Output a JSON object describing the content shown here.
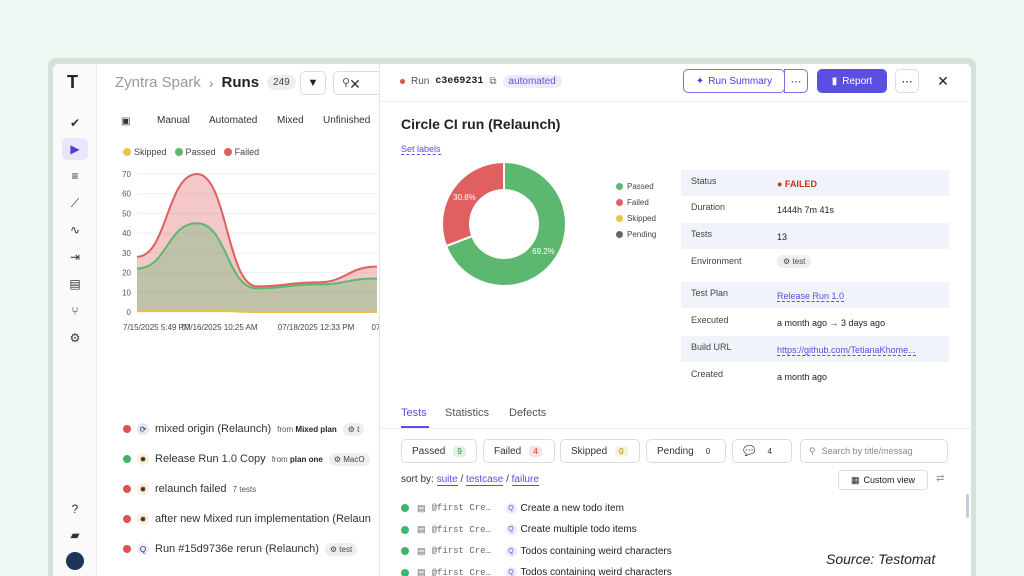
{
  "brand": {
    "logo_text": "T"
  },
  "rail": {
    "icons": [
      "check-icon",
      "play-icon",
      "list-icon",
      "steps-icon",
      "pulse-icon",
      "import-icon",
      "report-icon",
      "branch-icon",
      "gear-icon",
      "help-icon",
      "folder-icon",
      "avatar"
    ]
  },
  "breadcrumb": {
    "project": "Zyntra Spark",
    "separator": "›",
    "section": "Runs",
    "count": "249"
  },
  "filters": {
    "tabs": [
      "Manual",
      "Automated",
      "Mixed",
      "Unfinished"
    ]
  },
  "chart_data": {
    "type": "area",
    "legend": [
      "Skipped",
      "Passed",
      "Failed"
    ],
    "colors": {
      "Skipped": "#e8c547",
      "Passed": "#5cb86e",
      "Failed": "#e06060"
    },
    "y_ticks": [
      "70",
      "60",
      "50",
      "40",
      "30",
      "20",
      "10",
      "0"
    ],
    "x_ticks": [
      "7/15/2025 5:49 PM",
      "07/16/2025 10:25 AM",
      "07/18/2025 12:33 PM",
      "07/"
    ],
    "ylim": [
      0,
      70
    ],
    "x": [
      0,
      1,
      2,
      3,
      4
    ],
    "series": [
      {
        "name": "Passed",
        "values": [
          22,
          45,
          12,
          14,
          17
        ]
      },
      {
        "name": "Failed",
        "values": [
          28,
          70,
          13,
          15,
          23
        ]
      },
      {
        "name": "Skipped",
        "values": [
          1,
          1,
          0,
          0,
          0
        ]
      }
    ]
  },
  "runs": [
    {
      "status": "fail",
      "icon": "⟳",
      "icon_bg": "#dfe8fb",
      "title": "mixed origin (Relaunch)",
      "sub_prefix": "from",
      "sub_bold": "Mixed plan",
      "tag": "⚙ t"
    },
    {
      "status": "pass",
      "icon": "✸",
      "icon_bg": "#fdf0d5",
      "title": "Release Run 1.0 Copy",
      "sub_prefix": "from",
      "sub_bold": "plan one",
      "tag": "⚙ MacO"
    },
    {
      "status": "fail",
      "icon": "✸",
      "icon_bg": "#fdf0d5",
      "title": "relaunch failed",
      "sub_prefix": "7 tests",
      "sub_bold": "",
      "tag": ""
    },
    {
      "status": "fail",
      "icon": "✸",
      "icon_bg": "#fdf0d5",
      "title": "after new Mixed run implementation (Relaun",
      "sub_prefix": "",
      "sub_bold": "",
      "tag": ""
    },
    {
      "status": "fail",
      "icon": "Q",
      "icon_bg": "#efeafd",
      "title": "Run #15d9736e rerun (Relaunch)",
      "sub_prefix": "",
      "sub_bold": "",
      "tag": "⚙ test"
    }
  ],
  "panel": {
    "run_prefix": "Run",
    "run_id": "c3e69231",
    "origin_tag": "automated",
    "summary_label": "Run Summary",
    "report_label": "Report",
    "title": "Circle CI run (Relaunch)",
    "set_labels": "Set labels"
  },
  "donut": {
    "slices": [
      {
        "name": "Passed",
        "percent": 69.2,
        "label": "69.2%",
        "color": "#5cb86e"
      },
      {
        "name": "Failed",
        "percent": 30.8,
        "label": "30.8%",
        "color": "#e06060"
      }
    ],
    "legend": [
      {
        "name": "Passed",
        "color": "#5cb86e"
      },
      {
        "name": "Failed",
        "color": "#e06060"
      },
      {
        "name": "Skipped",
        "color": "#e8c547"
      },
      {
        "name": "Pending",
        "color": "#666666"
      }
    ]
  },
  "info": [
    {
      "key": "Status",
      "value": "FAILED",
      "kind": "fail",
      "shade": true
    },
    {
      "key": "Duration",
      "value": "1444h 7m 41s",
      "kind": "text",
      "shade": false
    },
    {
      "key": "Tests",
      "value": "13",
      "kind": "text",
      "shade": true
    },
    {
      "key": "Environment",
      "value": "⚙ test",
      "kind": "tag",
      "shade": false
    },
    {
      "key": "Test Plan",
      "value": "Release Run 1.0",
      "kind": "link",
      "shade": true
    },
    {
      "key": "Executed",
      "value": "a month ago → 3 days ago",
      "kind": "text",
      "shade": false
    },
    {
      "key": "Build URL",
      "value": "https://github.com/TetianaKhome...",
      "kind": "link",
      "shade": true
    },
    {
      "key": "Created",
      "value": "a month ago",
      "kind": "text",
      "shade": false
    }
  ],
  "tabs": [
    "Tests",
    "Statistics",
    "Defects"
  ],
  "chips": [
    {
      "label": "Passed",
      "count": "9",
      "bg": "#dff3e4",
      "fg": "#2f8a4c"
    },
    {
      "label": "Failed",
      "count": "4",
      "bg": "#fbe1e1",
      "fg": "#c9302c"
    },
    {
      "label": "Skipped",
      "count": "0",
      "bg": "#fbf1d4",
      "fg": "#9a7a12"
    },
    {
      "label": "Pending",
      "count": "0",
      "bg": "#ffffff",
      "fg": "#333333"
    },
    {
      "label": "💬",
      "count": "4",
      "bg": "#ffffff",
      "fg": "#333333"
    }
  ],
  "search_placeholder": "Search by title/messag",
  "sort": {
    "label": "sort by:",
    "options": [
      "suite",
      "testcase",
      "failure"
    ]
  },
  "custom_view": "Custom view",
  "tests": [
    {
      "code": "@first Cre…",
      "title": "Create a new todo item"
    },
    {
      "code": "@first Cre…",
      "title": "Create multiple todo items"
    },
    {
      "code": "@first Cre…",
      "title": "Todos containing weird characters"
    },
    {
      "code": "@first Cre…",
      "title": "Todos containing weird characters"
    }
  ],
  "source": "Source: Testomat"
}
